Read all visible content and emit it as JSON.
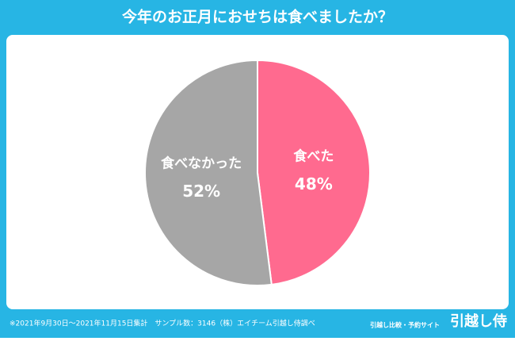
{
  "chart_data": {
    "type": "pie",
    "title": "今年のお正月におせちは食べましたか？",
    "categories": [
      "食べた",
      "食べなかった"
    ],
    "values": [
      48,
      52
    ],
    "value_labels": [
      "48%",
      "52%"
    ],
    "colors": [
      "#ff6a8f",
      "#a6a6a6"
    ],
    "footnote": "※2021年9月30日〜2021年11月15日集計　サンプル数：3146（株）エイチーム引越し侍調べ",
    "brand_tagline": "引越し比較・予約サイト",
    "brand_name": "引越し侍"
  }
}
